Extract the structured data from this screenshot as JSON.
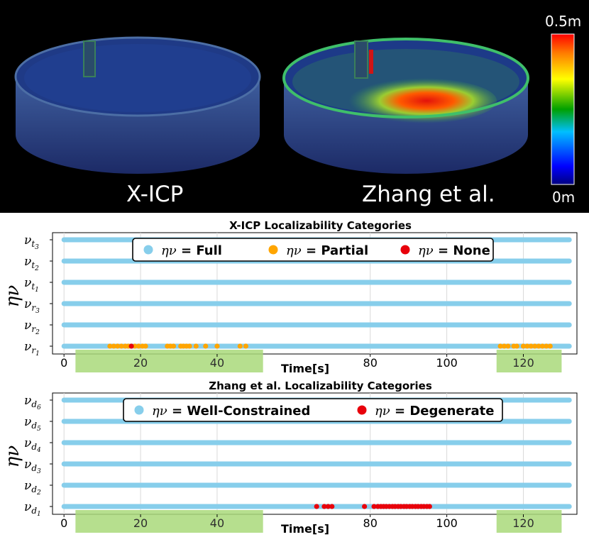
{
  "hero": {
    "left_label": "X-ICP",
    "right_label": "Zhang et al.",
    "colorbar_max": "0.5m",
    "colorbar_min": "0m"
  },
  "chart_data": [
    {
      "type": "scatter",
      "title": "X-ICP Localizability Categories",
      "xlabel": "Time[s]",
      "ylabel": "ην",
      "xlim": [
        -3,
        134
      ],
      "xticks": [
        0,
        20,
        40,
        80,
        100,
        120
      ],
      "highlight_xticks": [
        20,
        40,
        120
      ],
      "highlight_ranges": [
        [
          3,
          52
        ],
        [
          113,
          130
        ]
      ],
      "duration": [
        0,
        132
      ],
      "rows": [
        {
          "label": "ν",
          "sub": "r",
          "subsub": "1"
        },
        {
          "label": "ν",
          "sub": "r",
          "subsub": "2"
        },
        {
          "label": "ν",
          "sub": "r",
          "subsub": "3"
        },
        {
          "label": "ν",
          "sub": "t",
          "subsub": "1"
        },
        {
          "label": "ν",
          "sub": "t",
          "subsub": "2"
        },
        {
          "label": "ν",
          "sub": "t",
          "subsub": "3"
        }
      ],
      "legend": [
        {
          "eta": "ην",
          "text": "= Full",
          "color": "#87ceeb"
        },
        {
          "eta": "ην",
          "text": "= Partial",
          "color": "#ffa500"
        },
        {
          "eta": "ην",
          "text": "= None",
          "color": "#e8000b"
        }
      ],
      "series": [
        {
          "name": "Full",
          "color": "#87ceeb",
          "row": 0,
          "x": []
        },
        {
          "name": "Partial",
          "color": "#ffa500",
          "row": 0,
          "x": [
            12,
            13,
            14,
            15,
            16,
            16.8,
            18.5,
            19.5,
            20.5,
            21.3,
            27,
            27.8,
            28.6,
            30.5,
            31.2,
            32,
            32.8,
            34.5,
            37,
            40,
            46,
            47.5,
            114,
            115,
            116,
            117.5,
            118.3,
            120,
            121,
            122,
            123,
            124,
            125,
            126,
            127
          ]
        },
        {
          "name": "None",
          "color": "#e8000b",
          "row": 0,
          "x": [
            17.6
          ]
        }
      ]
    },
    {
      "type": "scatter",
      "title": "Zhang et al. Localizability Categories",
      "xlabel": "Time[s]",
      "ylabel": "ην",
      "xlim": [
        -3,
        134
      ],
      "xticks": [
        0,
        20,
        40,
        80,
        100,
        120
      ],
      "highlight_xticks": [
        20,
        40,
        120
      ],
      "highlight_ranges": [
        [
          3,
          52
        ],
        [
          113,
          130
        ]
      ],
      "duration": [
        0,
        132
      ],
      "rows": [
        {
          "label": "ν",
          "sub": "d",
          "subsub": "1"
        },
        {
          "label": "ν",
          "sub": "d",
          "subsub": "2"
        },
        {
          "label": "ν",
          "sub": "d",
          "subsub": "3"
        },
        {
          "label": "ν",
          "sub": "d",
          "subsub": "4"
        },
        {
          "label": "ν",
          "sub": "d",
          "subsub": "5"
        },
        {
          "label": "ν",
          "sub": "d",
          "subsub": "6"
        }
      ],
      "legend": [
        {
          "eta": "ην",
          "text": "= Well-Constrained",
          "color": "#87ceeb"
        },
        {
          "eta": "ην",
          "text": "= Degenerate",
          "color": "#e8000b"
        }
      ],
      "series": [
        {
          "name": "Well-Constrained",
          "color": "#87ceeb",
          "row": 0,
          "x": []
        },
        {
          "name": "Degenerate",
          "color": "#e8000b",
          "row": 0,
          "x": [
            66,
            68,
            69,
            70,
            78.5,
            81,
            82,
            82.8,
            83.5,
            84.2,
            85,
            85.8,
            86.5,
            87.3,
            88,
            88.8,
            89.5,
            90.3,
            91,
            91.8,
            92.5,
            93.3,
            94,
            94.8,
            95.5
          ]
        }
      ]
    }
  ]
}
